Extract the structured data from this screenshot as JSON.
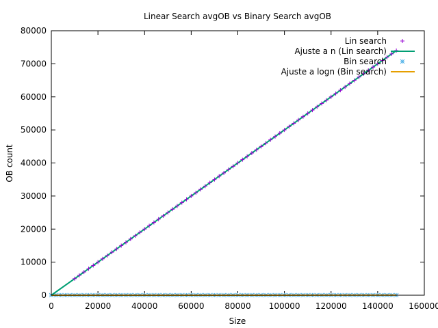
{
  "chart_data": {
    "type": "scatter",
    "title": "Linear Search avgOB vs Binary Search avgOB",
    "xlabel": "Size",
    "ylabel": "OB count",
    "xlim": [
      0,
      160000
    ],
    "ylim": [
      0,
      80000
    ],
    "xticks": [
      0,
      20000,
      40000,
      60000,
      80000,
      100000,
      120000,
      140000,
      160000
    ],
    "yticks": [
      0,
      10000,
      20000,
      30000,
      40000,
      50000,
      60000,
      70000,
      80000
    ],
    "grid": false,
    "legend_position": "top-right",
    "series": [
      {
        "name": "Lin search",
        "kind": "points",
        "marker": "plus",
        "color": "#9400d3",
        "x_start": 10000,
        "x_end": 148000,
        "x_step": 2000,
        "slope": 0.5,
        "intercept": 0
      },
      {
        "name": "Ajuste a n (Lin search)",
        "kind": "line",
        "color": "#009e73",
        "x": [
          0,
          148000
        ],
        "y": [
          0,
          74000
        ]
      },
      {
        "name": "Bin search",
        "kind": "points",
        "marker": "star",
        "color": "#56b4e9",
        "x_start": 0,
        "x_end": 148000,
        "x_step": 2000,
        "constant": 17
      },
      {
        "name": "Ajuste a logn (Bin search)",
        "kind": "line",
        "color": "#e69f00",
        "x": [
          0,
          148000
        ],
        "y": [
          0,
          17
        ]
      }
    ]
  }
}
